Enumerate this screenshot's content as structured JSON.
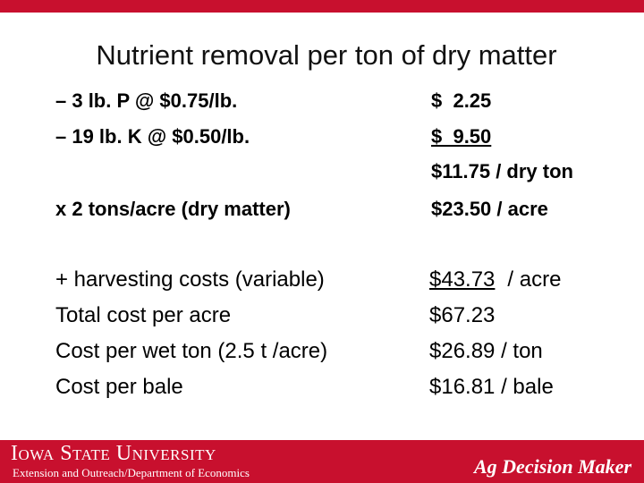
{
  "header": {
    "title": "Nutrient removal per ton of dry matter"
  },
  "rows": [
    {
      "left": "– 3 lb. P @ $0.75/lb.",
      "right": "$  2.25",
      "style": "bold"
    },
    {
      "left": "– 19 lb. K @ $0.50/lb.",
      "right": "$  9.50",
      "style": "bold",
      "underline": true
    },
    {
      "left": null,
      "right": "$11.75 / dry ton",
      "style": "bold"
    },
    {
      "left": "x 2 tons/acre (dry matter)",
      "right": "$23.50 / acre",
      "style": "bold"
    },
    {
      "left": "+ harvesting costs (variable)",
      "right": "$43.73",
      "right_suffix": "/ acre",
      "style": "normal",
      "underline": true
    },
    {
      "left": "Total cost per acre",
      "right": "$67.23",
      "style": "normal"
    },
    {
      "left": "Cost per wet ton (2.5 t /acre)",
      "right": "$26.89 / ton",
      "style": "normal"
    },
    {
      "left": "Cost per bale",
      "right": "$16.81 / bale",
      "style": "normal"
    }
  ],
  "footer": {
    "university": "Iowa State University",
    "department": "Extension and Outreach/Department of Economics",
    "brand": "Ag Decision Maker"
  }
}
